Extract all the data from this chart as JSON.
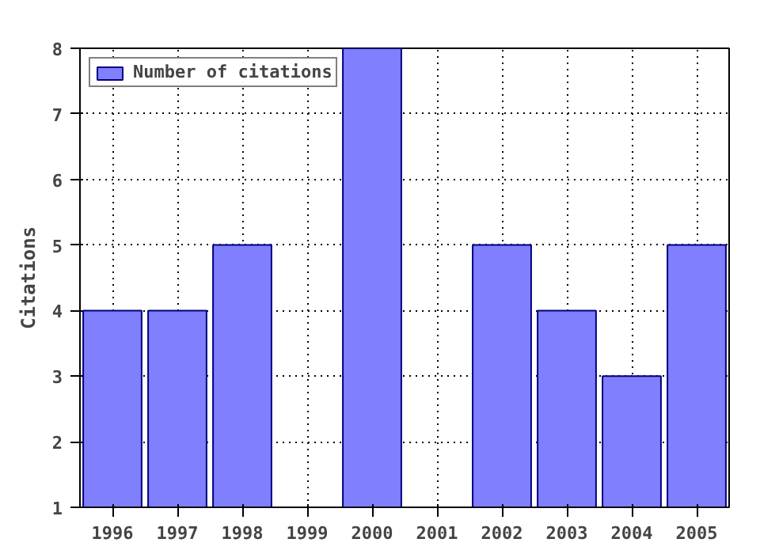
{
  "chart_data": {
    "type": "bar",
    "ylabel": "Citations",
    "categories": [
      "1996",
      "1997",
      "1998",
      "1999",
      "2000",
      "2001",
      "2002",
      "2003",
      "2004",
      "2005"
    ],
    "series": [
      {
        "name": "Number of citations",
        "color": "#8080ff",
        "values": [
          4,
          4,
          5,
          null,
          8,
          null,
          5,
          4,
          3,
          5
        ]
      }
    ],
    "ylim": [
      1,
      8
    ],
    "yticks": [
      1,
      2,
      3,
      4,
      5,
      6,
      7,
      8
    ],
    "grid": true,
    "legend": "top left"
  }
}
